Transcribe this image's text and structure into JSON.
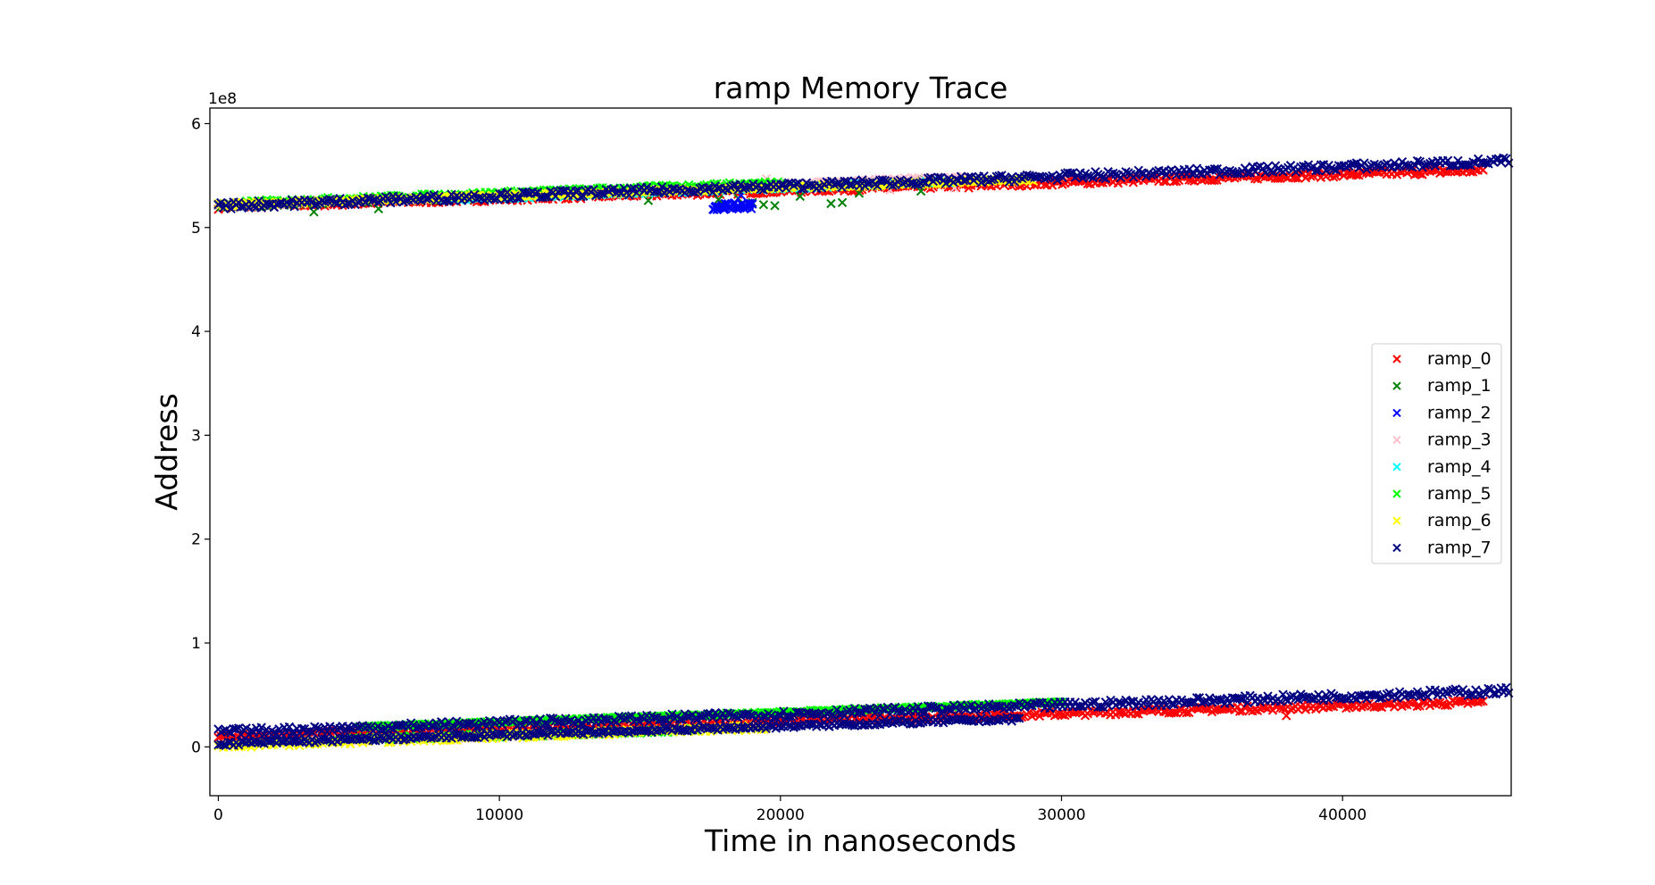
{
  "chart_data": {
    "type": "scatter",
    "title": "ramp Memory Trace",
    "xlabel": "Time in nanoseconds",
    "ylabel": "Address",
    "y_offset_label": "1e8",
    "y_scale": 100000000,
    "xlim": [
      -300,
      46000
    ],
    "ylim": [
      -0.47,
      6.15
    ],
    "x_ticks": [
      0,
      10000,
      20000,
      30000,
      40000
    ],
    "x_tick_labels": [
      "0",
      "10000",
      "20000",
      "30000",
      "40000"
    ],
    "y_ticks": [
      0,
      1,
      2,
      3,
      4,
      5,
      6
    ],
    "y_tick_labels": [
      "0",
      "1",
      "2",
      "3",
      "4",
      "5",
      "6"
    ],
    "grid": false,
    "legend_placement": "center-right",
    "marker": "x",
    "series": [
      {
        "name": "ramp_0",
        "color": "#ff0000",
        "bands": [
          {
            "x_start": 0,
            "x_end": 45000,
            "y_start": 5.2,
            "y_end": 5.55,
            "width": 0.05
          },
          {
            "x_start": 0,
            "x_end": 45000,
            "y_start": 0.1,
            "y_end": 0.43,
            "width": 0.05
          }
        ],
        "points": [
          [
            38000,
            0.3
          ],
          [
            26700,
            5.38
          ],
          [
            16500,
            5.32
          ],
          [
            40300,
            5.52
          ],
          [
            21500,
            5.36
          ]
        ]
      },
      {
        "name": "ramp_1",
        "color": "#008000",
        "bands": [
          {
            "x_start": 0,
            "x_end": 26000,
            "y_start": 5.21,
            "y_end": 5.45,
            "width": 0.04
          }
        ],
        "points": [
          [
            3400,
            5.15
          ],
          [
            5700,
            5.18
          ],
          [
            15300,
            5.26
          ],
          [
            17800,
            5.27
          ],
          [
            18500,
            5.28
          ],
          [
            19000,
            5.24
          ],
          [
            19400,
            5.22
          ],
          [
            19800,
            5.21
          ],
          [
            20700,
            5.3
          ],
          [
            21800,
            5.23
          ],
          [
            22200,
            5.24
          ],
          [
            22800,
            5.33
          ],
          [
            25000,
            5.35
          ]
        ]
      },
      {
        "name": "ramp_2",
        "color": "#0000ff",
        "bands": [
          {
            "x_start": 17600,
            "x_end": 19000,
            "y_start": 5.2,
            "y_end": 5.21,
            "width": 0.06
          }
        ],
        "points": [
          [
            18600,
            5.31
          ]
        ]
      },
      {
        "name": "ramp_3",
        "color": "#ffc0cb",
        "bands": [
          {
            "x_start": 0,
            "x_end": 26500,
            "y_start": 5.21,
            "y_end": 5.48,
            "width": 0.04
          },
          {
            "x_start": 3000,
            "x_end": 15000,
            "y_start": 0.05,
            "y_end": 0.14,
            "width": 0.03
          }
        ],
        "points": [
          [
            19500,
            5.47
          ],
          [
            23900,
            5.36
          ],
          [
            26200,
            5.38
          ]
        ]
      },
      {
        "name": "ramp_4",
        "color": "#00ffff",
        "bands": [
          {
            "x_start": 8000,
            "x_end": 26000,
            "y_start": 5.27,
            "y_end": 5.44,
            "width": 0.03
          }
        ],
        "points": []
      },
      {
        "name": "ramp_5",
        "color": "#00ff00",
        "bands": [
          {
            "x_start": 1000,
            "x_end": 20000,
            "y_start": 5.24,
            "y_end": 5.43,
            "width": 0.04
          },
          {
            "x_start": 4000,
            "x_end": 17000,
            "y_start": 0.07,
            "y_end": 0.16,
            "width": 0.04
          },
          {
            "x_start": 5000,
            "x_end": 30000,
            "y_start": 0.19,
            "y_end": 0.43,
            "width": 0.02
          }
        ],
        "points": []
      },
      {
        "name": "ramp_6",
        "color": "#ffff00",
        "bands": [
          {
            "x_start": 0,
            "x_end": 19500,
            "y_start": 0.01,
            "y_end": 0.19,
            "width": 0.05
          },
          {
            "x_start": 0,
            "x_end": 29000,
            "y_start": 5.22,
            "y_end": 5.46,
            "width": 0.03
          }
        ],
        "points": []
      },
      {
        "name": "ramp_7",
        "color": "#000080",
        "bands": [
          {
            "x_start": 0,
            "x_end": 46000,
            "y_start": 5.21,
            "y_end": 5.64,
            "width": 0.07
          },
          {
            "x_start": 0,
            "x_end": 46000,
            "y_start": 0.14,
            "y_end": 0.54,
            "width": 0.07
          },
          {
            "x_start": 0,
            "x_end": 28500,
            "y_start": 0.03,
            "y_end": 0.27,
            "width": 0.04
          }
        ],
        "points": []
      }
    ]
  }
}
